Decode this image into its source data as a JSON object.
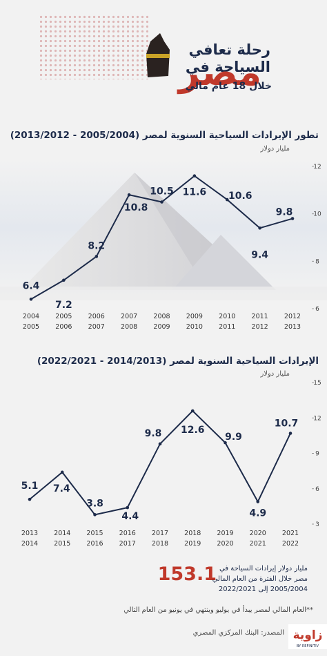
{
  "header": {
    "title_line1": "رحلة تعافي",
    "title_line2": "السياحة في",
    "title_big": "مصر",
    "subtitle": "خلال 18 عام مالي"
  },
  "chart_data": [
    {
      "type": "line",
      "title": "تطور الإيرادات السياحية السنوية لمصر  (2005/2004 - 2013/2012)",
      "y_label": "مليار دولار",
      "categories": [
        [
          "2004",
          "2005"
        ],
        [
          "2005",
          "2006"
        ],
        [
          "2006",
          "2007"
        ],
        [
          "2007",
          "2008"
        ],
        [
          "2008",
          "2009"
        ],
        [
          "2009",
          "2010"
        ],
        [
          "2010",
          "2011"
        ],
        [
          "2011",
          "2012"
        ],
        [
          "2012",
          "2013"
        ]
      ],
      "values": [
        6.4,
        7.2,
        8.2,
        10.8,
        10.5,
        11.6,
        10.6,
        9.4,
        9.8
      ],
      "color": "#1d2b4a",
      "ylim": [
        6,
        12
      ],
      "yticks": [
        6,
        8,
        10,
        12
      ]
    },
    {
      "type": "line",
      "title": "الإيرادات السياحية السنوية لمصر  (2014/2013 - 2022/2021)",
      "y_label": "مليار دولار",
      "categories": [
        [
          "2013",
          "2014"
        ],
        [
          "2014",
          "2015"
        ],
        [
          "2015",
          "2016"
        ],
        [
          "2016",
          "2017"
        ],
        [
          "2017",
          "2018"
        ],
        [
          "2018",
          "2019"
        ],
        [
          "2019",
          "2020"
        ],
        [
          "2020",
          "2021"
        ],
        [
          "2021",
          "2022"
        ]
      ],
      "values": [
        5.1,
        7.4,
        3.8,
        4.4,
        9.8,
        12.6,
        9.9,
        4.9,
        10.7
      ],
      "color": "#1d2b4a",
      "ylim": [
        3,
        15
      ],
      "yticks": [
        3,
        6,
        9,
        12,
        15
      ]
    }
  ],
  "footer": {
    "total": "153.1",
    "total_text": "مليار دولار إيرادات السياحة في مصر خلال الفترة من العام المالي 2005/2004  إلى 2022/2021",
    "note": "**العام المالي لمصر يبدأ في يوليو وينتهي في يونيو من العام التالي",
    "source": "المصدر: البنك المركزي المصري",
    "logo": "زاوية",
    "logo_sub": "BY REFINITIV"
  }
}
